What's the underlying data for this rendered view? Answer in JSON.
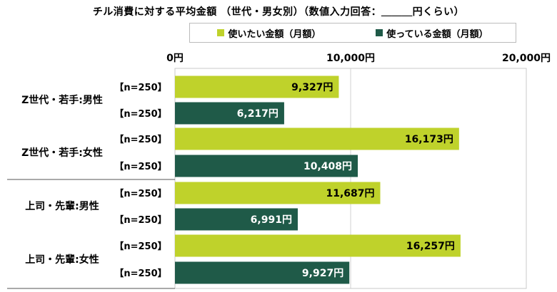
{
  "title": "チル消費に対する平均金額 （世代・男女別）（数値入力回答：＿＿＿円くらい）",
  "chart_data": {
    "type": "bar",
    "orientation": "horizontal",
    "title": "チル消費に対する平均金額 （世代・男女別）（数値入力回答：＿＿＿円くらい）",
    "xlim": [
      0,
      20000
    ],
    "x_tick_labels": [
      "0円",
      "10,000円",
      "20,000円"
    ],
    "x_ticks": [
      0,
      10000,
      20000
    ],
    "grid": true,
    "legend_placement": "top",
    "series": [
      {
        "name": "使いたい金額（月額）",
        "color": "#bfd22b"
      },
      {
        "name": "使っている金額（月額）",
        "color": "#1f5a48"
      }
    ],
    "groups": [
      {
        "label": "Z世代・若手:男性",
        "bars": [
          {
            "series": 0,
            "n_label": "【n=250】",
            "value": 9327,
            "value_label": "9,327円"
          },
          {
            "series": 1,
            "n_label": "【n=250】",
            "value": 6217,
            "value_label": "6,217円"
          }
        ]
      },
      {
        "label": "Z世代・若手:女性",
        "bars": [
          {
            "series": 0,
            "n_label": "【n=250】",
            "value": 16173,
            "value_label": "16,173円"
          },
          {
            "series": 1,
            "n_label": "【n=250】",
            "value": 10408,
            "value_label": "10,408円"
          }
        ]
      },
      {
        "label": "上司・先輩:男性",
        "bars": [
          {
            "series": 0,
            "n_label": "【n=250】",
            "value": 11687,
            "value_label": "11,687円"
          },
          {
            "series": 1,
            "n_label": "【n=250】",
            "value": 6991,
            "value_label": "6,991円"
          }
        ]
      },
      {
        "label": "上司・先輩:女性",
        "bars": [
          {
            "series": 0,
            "n_label": "【n=250】",
            "value": 16257,
            "value_label": "16,257円"
          },
          {
            "series": 1,
            "n_label": "【n=250】",
            "value": 9927,
            "value_label": "9,927円"
          }
        ]
      }
    ]
  }
}
